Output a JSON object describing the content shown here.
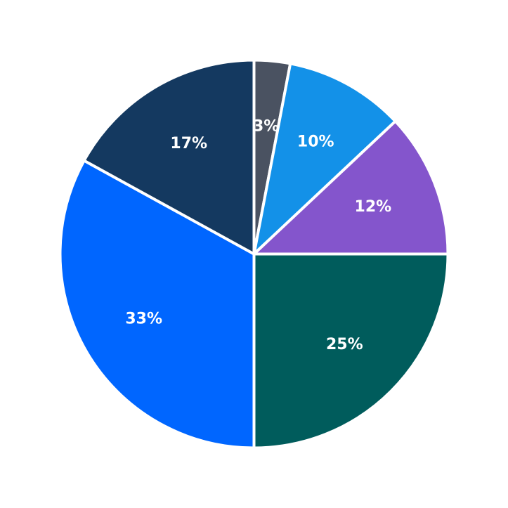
{
  "chart_data": {
    "type": "pie",
    "title": "",
    "start_angle_deg": 90,
    "direction": "clockwise",
    "slices": [
      {
        "value": 3,
        "label": "3%",
        "color": "#4a5261"
      },
      {
        "value": 10,
        "label": "10%",
        "color": "#1391e8"
      },
      {
        "value": 12,
        "label": "12%",
        "color": "#8455cc"
      },
      {
        "value": 25,
        "label": "25%",
        "color": "#005c5c"
      },
      {
        "value": 33,
        "label": "33%",
        "color": "#0066ff"
      },
      {
        "value": 17,
        "label": "17%",
        "color": "#143960"
      }
    ]
  }
}
